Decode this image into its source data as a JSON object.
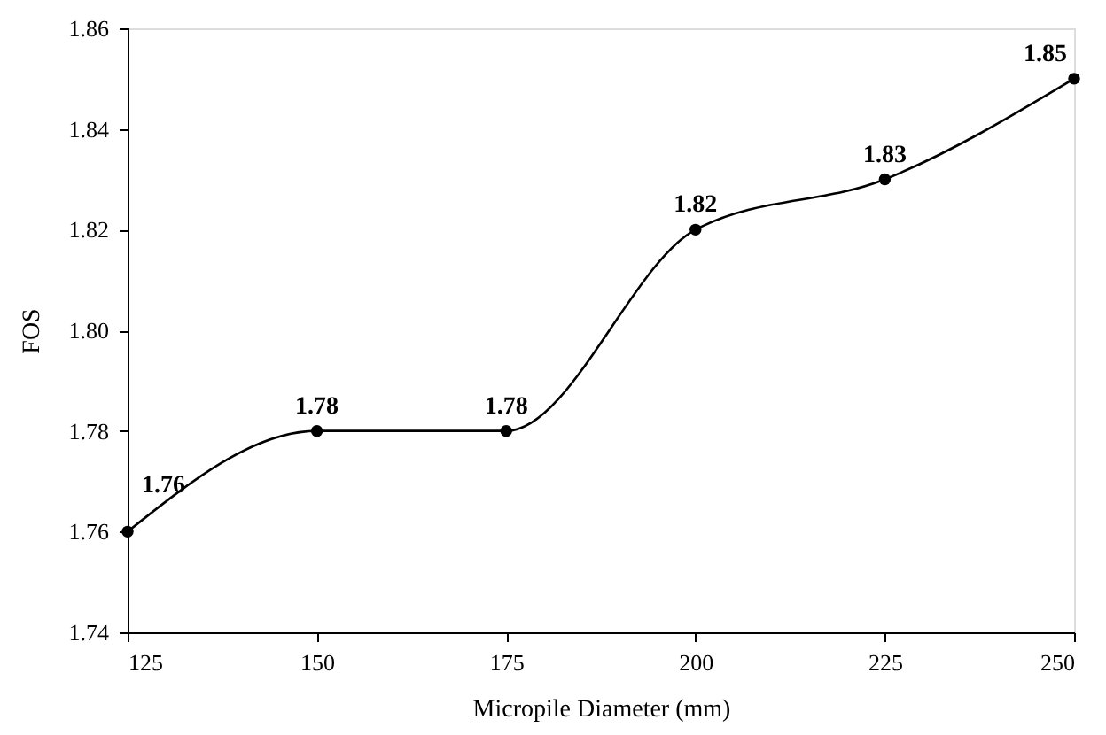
{
  "chart_data": {
    "type": "line",
    "xlabel": "Micropile Diameter (mm)",
    "ylabel": "FOS",
    "x": [
      125,
      150,
      175,
      200,
      225,
      250
    ],
    "series": [
      {
        "color": "#000000",
        "values": [
          1.76,
          1.78,
          1.78,
          1.82,
          1.83,
          1.85
        ]
      }
    ],
    "xlim": [
      125,
      250
    ],
    "xticks": [
      125,
      150,
      175,
      200,
      225,
      250
    ],
    "ylim": [
      1.74,
      1.86
    ],
    "yticks": [
      1.74,
      1.76,
      1.78,
      {
        "value": 1.8,
        "label": "1.80"
      },
      1.82,
      1.84,
      1.86
    ],
    "data_labels": true,
    "marker": "circle",
    "line_style": "solid",
    "grid": false
  }
}
